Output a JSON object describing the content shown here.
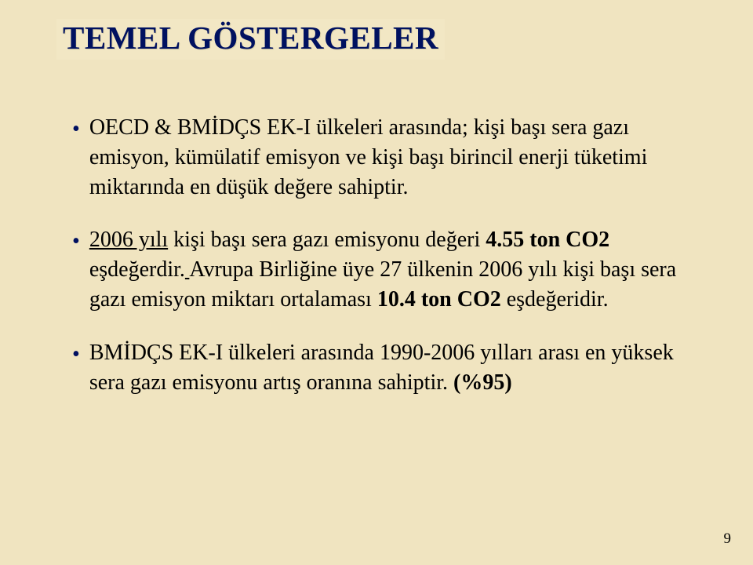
{
  "slide": {
    "background_color": "#f0e4c0",
    "title_box_bg": "#f2e7c4",
    "title_color": "#001160",
    "bullet_color": "#001060",
    "body_color": "#000000",
    "title_fontsize": 41,
    "body_fontsize": 28,
    "title": "TEMEL GÖSTERGELER",
    "page_number": "9",
    "bullets": [
      {
        "html": "OECD & BMİDÇS  EK-I ülkeleri arasında; kişi başı sera gazı emisyon, kümülatif emisyon ve kişi başı birincil enerji tüketimi miktarında en düşük değere sahiptir."
      },
      {
        "html": "<span class=\"u\">2006 yılı</span> kişi başı sera gazı emisyonu değeri <span class=\"b\">4.55 ton CO2</span> eşdeğerdir.<span class=\"u\"> </span>Avrupa Birliğine üye 27 ülkenin 2006 yılı kişi başı sera gazı emisyon miktarı ortalaması <span class=\"b\">10.4 ton CO2</span> eşdeğeridir."
      },
      {
        "html": "BMİDÇS EK-I ülkeleri arasında 1990-2006 yılları arası en yüksek sera gazı emisyonu artış oranına sahiptir.  <span class=\"b\">(%95)</span>"
      }
    ]
  }
}
